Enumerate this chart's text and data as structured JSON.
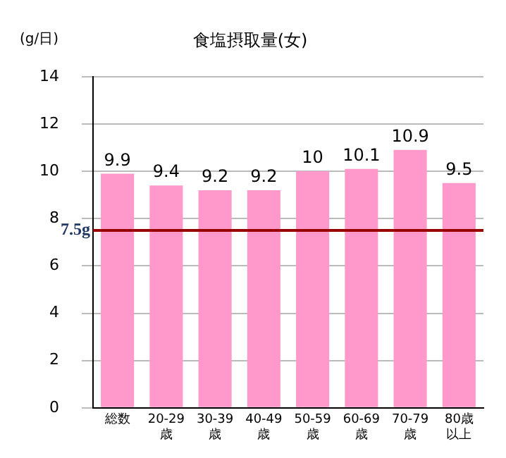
{
  "chart_data": {
    "type": "bar",
    "title": "食塩摂取量(女)",
    "ylabel": "(g/日)",
    "categories": [
      "総数",
      "20-29歳",
      "30-39歳",
      "40-49歳",
      "50-59歳",
      "60-69歳",
      "70-79歳",
      "80歳以上"
    ],
    "values": [
      9.9,
      9.4,
      9.2,
      9.2,
      10,
      10.1,
      10.9,
      9.5
    ],
    "color": "#ff99cc",
    "ylim": [
      0,
      14
    ],
    "yticks": [
      0,
      2,
      4,
      6,
      8,
      10,
      12,
      14
    ],
    "grid": "y",
    "data_labels": true,
    "ref_lines": [
      {
        "axis": "y",
        "value": 7.5,
        "label": "7.5g",
        "color": "#990000"
      }
    ]
  }
}
